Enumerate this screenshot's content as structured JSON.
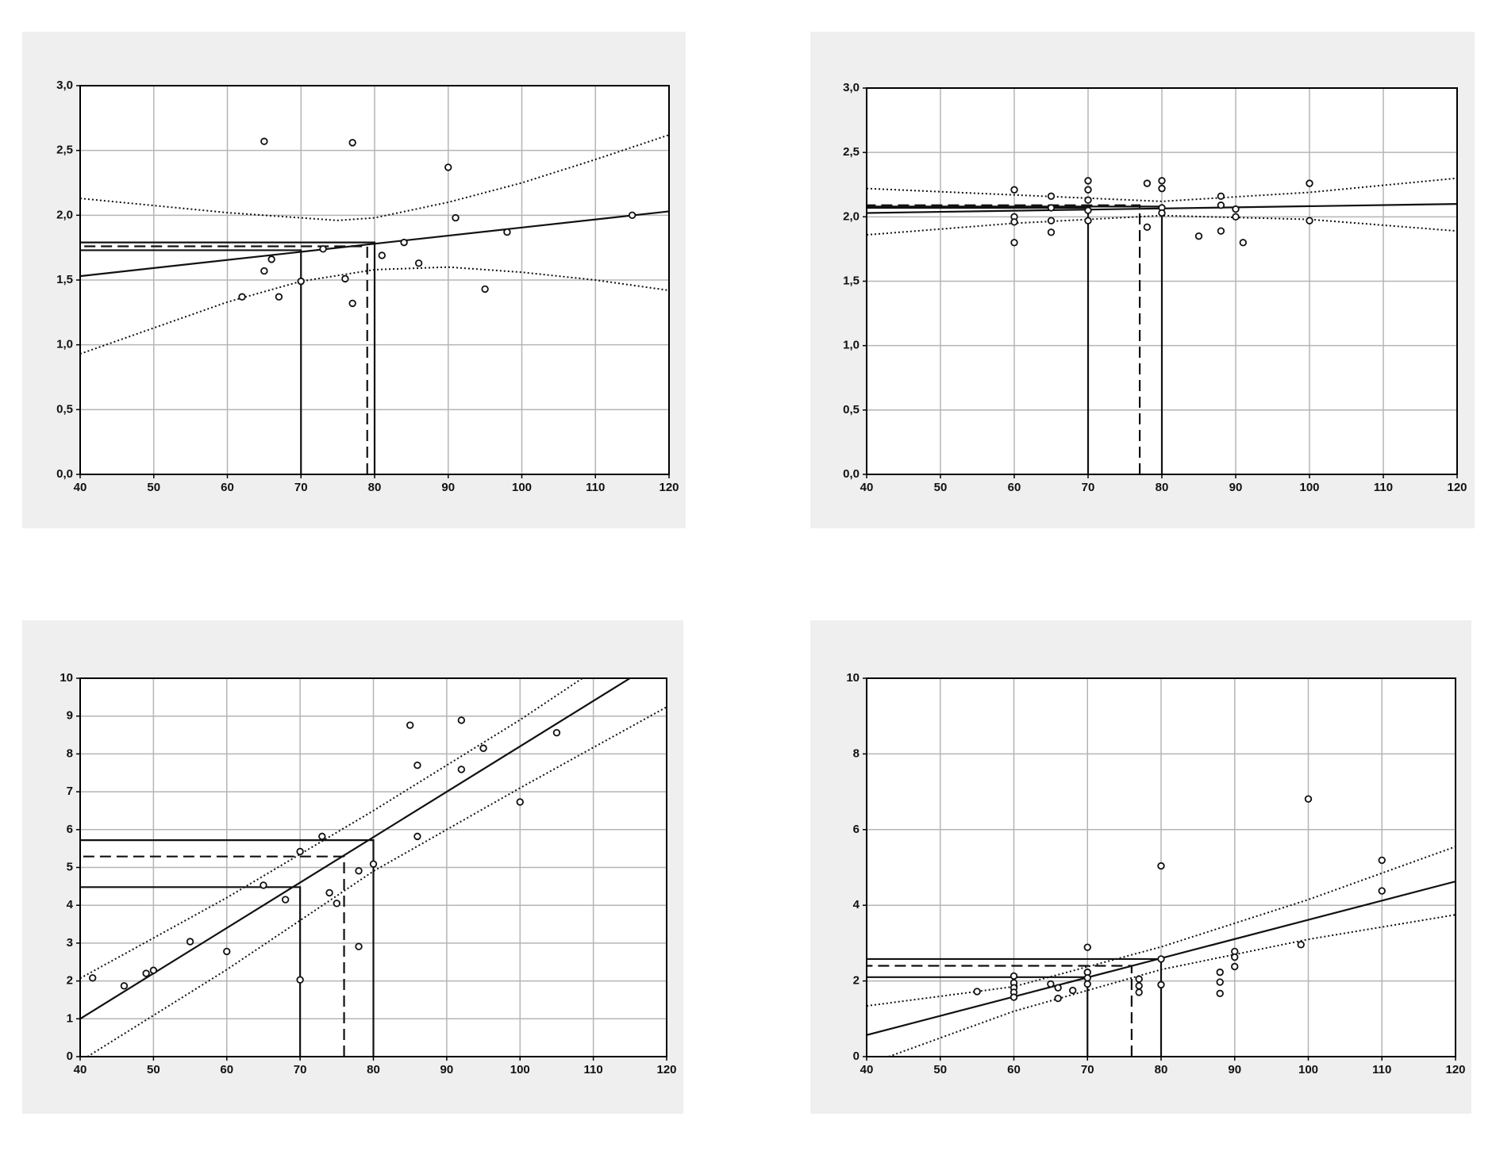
{
  "chart_data": [
    {
      "type": "scatter",
      "x": [
        65,
        77,
        90,
        91,
        115,
        98,
        84,
        81,
        73,
        66,
        65,
        86,
        76,
        62,
        67,
        77,
        70,
        95
      ],
      "values": [
        2.57,
        2.56,
        2.37,
        1.98,
        2.0,
        1.87,
        1.79,
        1.69,
        1.74,
        1.66,
        1.57,
        1.63,
        1.51,
        1.37,
        1.37,
        1.32,
        1.49,
        1.43
      ],
      "xlim": [
        40,
        120
      ],
      "xticks": [
        40,
        50,
        60,
        70,
        80,
        90,
        100,
        110,
        120
      ],
      "ylim": [
        0,
        3
      ],
      "yticks": [
        {
          "value": 0,
          "label": "0,0"
        },
        {
          "value": 0.5,
          "label": "0,5"
        },
        {
          "value": 1,
          "label": "1,0"
        },
        {
          "value": 1.5,
          "label": "1,5"
        },
        {
          "value": 2,
          "label": "2,0"
        },
        {
          "value": 2.5,
          "label": "2,5"
        },
        {
          "value": 3,
          "label": "3,0"
        }
      ],
      "grid": true,
      "lines": [
        {
          "style": "solid",
          "x": [
            40,
            120
          ],
          "values": [
            1.53,
            2.03
          ]
        },
        {
          "style": "dotted",
          "x": [
            40,
            60,
            75,
            80,
            90,
            100,
            110,
            120
          ],
          "values": [
            2.13,
            2.02,
            1.96,
            1.98,
            2.1,
            2.25,
            2.43,
            2.62
          ]
        },
        {
          "style": "dotted",
          "x": [
            40,
            50,
            60,
            70,
            80,
            90,
            100,
            110,
            120
          ],
          "values": [
            0.93,
            1.13,
            1.33,
            1.49,
            1.58,
            1.6,
            1.56,
            1.5,
            1.42
          ]
        },
        {
          "style": "solid",
          "x": [
            70,
            70,
            40
          ],
          "values": [
            0,
            1.73,
            1.73
          ]
        },
        {
          "style": "solid",
          "x": [
            80,
            80,
            40
          ],
          "values": [
            0,
            1.79,
            1.79
          ]
        },
        {
          "style": "dashed",
          "x": [
            79,
            79,
            40
          ],
          "values": [
            0,
            1.76,
            1.76
          ]
        }
      ]
    },
    {
      "type": "scatter",
      "x": [
        60,
        60,
        60,
        60,
        65,
        65,
        65,
        65,
        70,
        70,
        70,
        70,
        70,
        78,
        78,
        80,
        80,
        80,
        80,
        85,
        88,
        88,
        88,
        90,
        90,
        91,
        100,
        100
      ],
      "values": [
        2.21,
        2.0,
        1.96,
        1.8,
        2.16,
        2.07,
        1.97,
        1.88,
        2.28,
        2.21,
        2.13,
        2.05,
        1.97,
        2.26,
        1.92,
        2.28,
        2.22,
        2.07,
        2.03,
        1.85,
        2.16,
        2.09,
        1.89,
        2.06,
        2.0,
        1.8,
        2.26,
        1.97
      ],
      "xlim": [
        40,
        120
      ],
      "xticks": [
        40,
        50,
        60,
        70,
        80,
        90,
        100,
        110,
        120
      ],
      "ylim": [
        0,
        3
      ],
      "yticks": [
        {
          "value": 0,
          "label": "0,0"
        },
        {
          "value": 0.5,
          "label": "0,5"
        },
        {
          "value": 1,
          "label": "1,0"
        },
        {
          "value": 1.5,
          "label": "1,5"
        },
        {
          "value": 2,
          "label": "2,0"
        },
        {
          "value": 2.5,
          "label": "2,5"
        },
        {
          "value": 3,
          "label": "3,0"
        }
      ],
      "grid": true,
      "lines": [
        {
          "style": "solid",
          "x": [
            40,
            120
          ],
          "values": [
            2.03,
            2.1
          ]
        },
        {
          "style": "dotted",
          "x": [
            40,
            60,
            80,
            100,
            120
          ],
          "values": [
            2.22,
            2.17,
            2.12,
            2.19,
            2.3
          ]
        },
        {
          "style": "dotted",
          "x": [
            40,
            60,
            80,
            100,
            120
          ],
          "values": [
            1.86,
            1.95,
            2.01,
            1.98,
            1.89
          ]
        },
        {
          "style": "solid",
          "x": [
            70,
            70,
            40
          ],
          "values": [
            0,
            2.07,
            2.07
          ]
        },
        {
          "style": "solid",
          "x": [
            80,
            80,
            40
          ],
          "values": [
            0,
            2.08,
            2.08
          ]
        },
        {
          "style": "dashed",
          "x": [
            77,
            77,
            40
          ],
          "values": [
            0,
            2.09,
            2.09
          ]
        }
      ]
    },
    {
      "type": "scatter",
      "x": [
        41.7,
        46,
        49,
        50,
        55,
        60,
        65,
        68,
        70,
        70,
        73,
        74,
        75,
        78,
        78,
        80,
        85,
        86,
        86,
        92,
        92,
        95,
        100,
        105
      ],
      "values": [
        2.08,
        1.87,
        2.2,
        2.28,
        3.04,
        2.78,
        4.53,
        4.15,
        5.42,
        2.03,
        5.82,
        4.33,
        4.05,
        2.91,
        4.91,
        5.09,
        8.76,
        7.7,
        5.82,
        8.89,
        7.59,
        8.15,
        6.73,
        8.56
      ],
      "xlim": [
        40,
        120
      ],
      "xticks": [
        40,
        50,
        60,
        70,
        80,
        90,
        100,
        110,
        120
      ],
      "ylim": [
        0,
        10
      ],
      "yticks": [
        0,
        1,
        2,
        3,
        4,
        5,
        6,
        7,
        8,
        9,
        10
      ],
      "grid": true,
      "lines": [
        {
          "style": "solid",
          "x": [
            40,
            115
          ],
          "values": [
            1.0,
            10.0
          ]
        },
        {
          "style": "dotted",
          "x": [
            40,
            60,
            80,
            100,
            108.5
          ],
          "values": [
            2.07,
            4.2,
            6.5,
            8.9,
            10
          ]
        },
        {
          "style": "dotted",
          "x": [
            41,
            60,
            80,
            100,
            120
          ],
          "values": [
            0,
            2.3,
            4.9,
            7.1,
            9.24
          ]
        },
        {
          "style": "solid",
          "x": [
            70,
            70,
            40
          ],
          "values": [
            0,
            4.48,
            4.48
          ]
        },
        {
          "style": "solid",
          "x": [
            80,
            80,
            40
          ],
          "values": [
            0,
            5.72,
            5.72
          ]
        },
        {
          "style": "dashed",
          "x": [
            76,
            76,
            40
          ],
          "values": [
            0,
            5.29,
            5.29
          ]
        }
      ]
    },
    {
      "type": "scatter",
      "x": [
        55,
        60,
        60,
        60,
        60,
        60,
        65,
        66,
        66,
        68,
        70,
        70,
        70,
        70,
        77,
        77,
        77,
        80,
        80,
        80,
        88,
        88,
        88,
        90,
        90,
        90,
        99,
        100,
        110,
        110
      ],
      "values": [
        1.72,
        2.13,
        1.95,
        1.82,
        1.7,
        1.57,
        1.92,
        1.82,
        1.54,
        1.75,
        2.89,
        2.23,
        2.08,
        1.92,
        2.05,
        1.87,
        1.7,
        5.04,
        2.58,
        1.9,
        2.23,
        1.97,
        1.67,
        2.78,
        2.63,
        2.38,
        2.96,
        6.81,
        5.19,
        4.38
      ],
      "xlim": [
        40,
        120
      ],
      "xticks": [
        40,
        50,
        60,
        70,
        80,
        90,
        100,
        110,
        120
      ],
      "ylim": [
        0,
        10
      ],
      "yticks": [
        0,
        2,
        4,
        6,
        8,
        10
      ],
      "grid": true,
      "lines": [
        {
          "style": "solid",
          "x": [
            40,
            120
          ],
          "values": [
            0.57,
            4.63
          ]
        },
        {
          "style": "dotted",
          "x": [
            40,
            60,
            80,
            100,
            120
          ],
          "values": [
            1.34,
            1.85,
            2.9,
            4.15,
            5.55
          ]
        },
        {
          "style": "dotted",
          "x": [
            43,
            60,
            80,
            100,
            120
          ],
          "values": [
            0,
            1.2,
            2.3,
            3.1,
            3.75
          ]
        },
        {
          "style": "solid",
          "x": [
            70,
            70,
            40
          ],
          "values": [
            0,
            2.1,
            2.1
          ]
        },
        {
          "style": "solid",
          "x": [
            80,
            80,
            40
          ],
          "values": [
            0,
            2.58,
            2.58
          ]
        },
        {
          "style": "dashed",
          "x": [
            76,
            76,
            40
          ],
          "values": [
            0,
            2.4,
            2.4
          ]
        }
      ]
    }
  ]
}
